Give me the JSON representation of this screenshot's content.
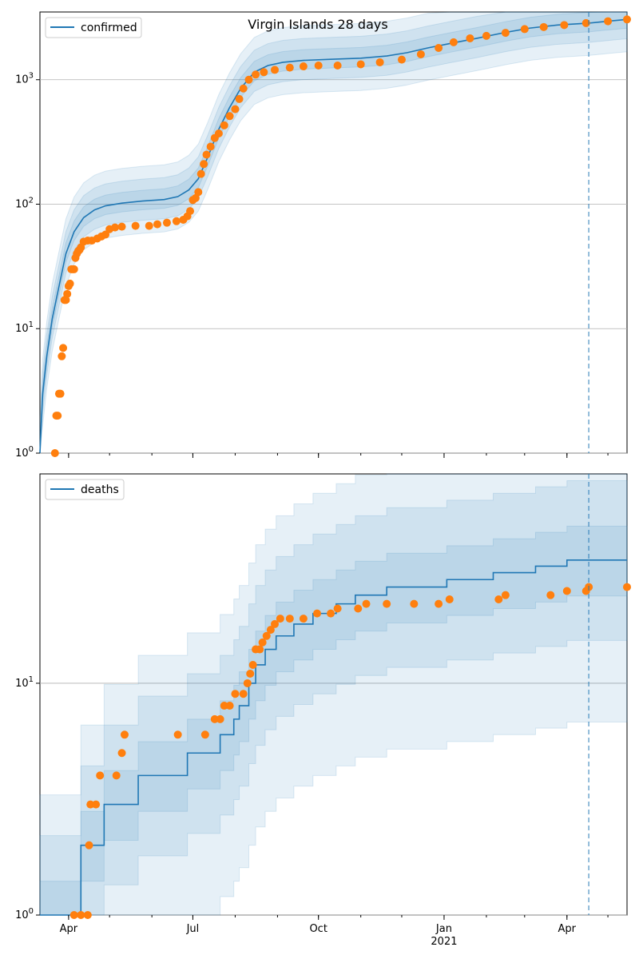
{
  "chart_data": [
    {
      "type": "line",
      "title": "Virgin Islands 28 days",
      "yscale": "log",
      "ylim": [
        1,
        3500
      ],
      "xlim": [
        "2020-03-11",
        "2021-05-15"
      ],
      "y_ticks": [
        {
          "value": 1,
          "base": "10",
          "exp": "0"
        },
        {
          "value": 10,
          "base": "10",
          "exp": "1"
        },
        {
          "value": 100,
          "base": "10",
          "exp": "2"
        },
        {
          "value": 1000,
          "base": "10",
          "exp": "3"
        }
      ],
      "grid": "y-major",
      "legend": {
        "position": "top-left",
        "label": "confirmed"
      },
      "vline_date": "2021-04-17",
      "colors": {
        "model": "#1f77b4",
        "observed": "#ff7f0e",
        "band": "#1f77b4"
      },
      "series": [
        {
          "name": "confirmed",
          "kind": "line",
          "points": [
            [
              "2020-03-11",
              1
            ],
            [
              "2020-03-13",
              3
            ],
            [
              "2020-03-16",
              6
            ],
            [
              "2020-03-20",
              12
            ],
            [
              "2020-03-25",
              22
            ],
            [
              "2020-03-30",
              40
            ],
            [
              "2020-04-05",
              60
            ],
            [
              "2020-04-12",
              78
            ],
            [
              "2020-04-20",
              90
            ],
            [
              "2020-04-28",
              97
            ],
            [
              "2020-05-10",
              102
            ],
            [
              "2020-05-25",
              106
            ],
            [
              "2020-06-10",
              109
            ],
            [
              "2020-06-20",
              115
            ],
            [
              "2020-06-28",
              130
            ],
            [
              "2020-07-05",
              160
            ],
            [
              "2020-07-12",
              240
            ],
            [
              "2020-07-20",
              400
            ],
            [
              "2020-07-28",
              600
            ],
            [
              "2020-08-05",
              850
            ],
            [
              "2020-08-15",
              1150
            ],
            [
              "2020-08-25",
              1300
            ],
            [
              "2020-09-05",
              1380
            ],
            [
              "2020-09-20",
              1430
            ],
            [
              "2020-10-10",
              1460
            ],
            [
              "2020-11-01",
              1490
            ],
            [
              "2020-11-20",
              1550
            ],
            [
              "2020-12-05",
              1650
            ],
            [
              "2020-12-20",
              1800
            ],
            [
              "2021-01-05",
              1950
            ],
            [
              "2021-01-25",
              2150
            ],
            [
              "2021-02-15",
              2400
            ],
            [
              "2021-03-05",
              2600
            ],
            [
              "2021-03-25",
              2750
            ],
            [
              "2021-04-17",
              2850
            ],
            [
              "2021-05-01",
              2950
            ],
            [
              "2021-05-15",
              3050
            ]
          ]
        },
        {
          "name": "confirmed_observed",
          "kind": "scatter",
          "points": [
            [
              "2020-03-22",
              1
            ],
            [
              "2020-03-23",
              2
            ],
            [
              "2020-03-24",
              2
            ],
            [
              "2020-03-25",
              3
            ],
            [
              "2020-03-26",
              3
            ],
            [
              "2020-03-27",
              6
            ],
            [
              "2020-03-28",
              7
            ],
            [
              "2020-03-29",
              17
            ],
            [
              "2020-03-30",
              17
            ],
            [
              "2020-03-31",
              19
            ],
            [
              "2020-04-01",
              22
            ],
            [
              "2020-04-02",
              23
            ],
            [
              "2020-04-03",
              30
            ],
            [
              "2020-04-04",
              30
            ],
            [
              "2020-04-05",
              30
            ],
            [
              "2020-04-06",
              37
            ],
            [
              "2020-04-07",
              40
            ],
            [
              "2020-04-08",
              42
            ],
            [
              "2020-04-09",
              43
            ],
            [
              "2020-04-10",
              45
            ],
            [
              "2020-04-12",
              50
            ],
            [
              "2020-04-15",
              51
            ],
            [
              "2020-04-18",
              51
            ],
            [
              "2020-04-22",
              53
            ],
            [
              "2020-04-25",
              55
            ],
            [
              "2020-04-28",
              57
            ],
            [
              "2020-05-01",
              63
            ],
            [
              "2020-05-05",
              65
            ],
            [
              "2020-05-10",
              66
            ],
            [
              "2020-05-20",
              67
            ],
            [
              "2020-05-30",
              67
            ],
            [
              "2020-06-05",
              69
            ],
            [
              "2020-06-12",
              71
            ],
            [
              "2020-06-19",
              73
            ],
            [
              "2020-06-24",
              75
            ],
            [
              "2020-06-27",
              80
            ],
            [
              "2020-06-29",
              88
            ],
            [
              "2020-07-01",
              108
            ],
            [
              "2020-07-03",
              112
            ],
            [
              "2020-07-05",
              125
            ],
            [
              "2020-07-07",
              175
            ],
            [
              "2020-07-09",
              210
            ],
            [
              "2020-07-11",
              250
            ],
            [
              "2020-07-14",
              290
            ],
            [
              "2020-07-17",
              340
            ],
            [
              "2020-07-20",
              370
            ],
            [
              "2020-07-24",
              430
            ],
            [
              "2020-07-28",
              510
            ],
            [
              "2020-08-01",
              580
            ],
            [
              "2020-08-04",
              700
            ],
            [
              "2020-08-07",
              850
            ],
            [
              "2020-08-11",
              1000
            ],
            [
              "2020-08-16",
              1100
            ],
            [
              "2020-08-22",
              1150
            ],
            [
              "2020-08-30",
              1200
            ],
            [
              "2020-09-10",
              1250
            ],
            [
              "2020-09-20",
              1280
            ],
            [
              "2020-10-01",
              1300
            ],
            [
              "2020-10-15",
              1300
            ],
            [
              "2020-11-01",
              1330
            ],
            [
              "2020-11-15",
              1380
            ],
            [
              "2020-12-01",
              1450
            ],
            [
              "2020-12-15",
              1600
            ],
            [
              "2020-12-28",
              1800
            ],
            [
              "2021-01-08",
              2000
            ],
            [
              "2021-01-20",
              2150
            ],
            [
              "2021-02-01",
              2250
            ],
            [
              "2021-02-15",
              2380
            ],
            [
              "2021-03-01",
              2550
            ],
            [
              "2021-03-15",
              2650
            ],
            [
              "2021-03-30",
              2750
            ],
            [
              "2021-04-15",
              2850
            ],
            [
              "2021-05-01",
              2950
            ],
            [
              "2021-05-15",
              3050
            ]
          ]
        }
      ],
      "bands": [
        {
          "level": "outer",
          "upper_factor": 1.9,
          "lower_factor": 0.55
        },
        {
          "level": "mid",
          "upper_factor": 1.5,
          "lower_factor": 0.7
        },
        {
          "level": "inner",
          "upper_factor": 1.22,
          "lower_factor": 0.85
        }
      ]
    },
    {
      "type": "line",
      "title": "",
      "yscale": "log",
      "ylim": [
        1,
        80
      ],
      "xlim": [
        "2020-03-11",
        "2021-05-15"
      ],
      "y_ticks": [
        {
          "value": 1,
          "base": "10",
          "exp": "0"
        },
        {
          "value": 10,
          "base": "10",
          "exp": "1"
        }
      ],
      "x_ticks": [
        {
          "date": "2020-04-01",
          "label": "Apr",
          "sub": ""
        },
        {
          "date": "2020-07-01",
          "label": "Jul",
          "sub": ""
        },
        {
          "date": "2020-10-01",
          "label": "Oct",
          "sub": ""
        },
        {
          "date": "2021-01-01",
          "label": "Jan",
          "sub": "2021"
        },
        {
          "date": "2021-04-01",
          "label": "Apr",
          "sub": ""
        }
      ],
      "grid": "y-major",
      "legend": {
        "position": "top-left",
        "label": "deaths"
      },
      "vline_date": "2021-04-17",
      "colors": {
        "model": "#1f77b4",
        "observed": "#ff7f0e",
        "band": "#1f77b4"
      },
      "series": [
        {
          "name": "deaths",
          "kind": "step",
          "points": [
            [
              "2020-03-11",
              1
            ],
            [
              "2020-04-10",
              2
            ],
            [
              "2020-04-27",
              3
            ],
            [
              "2020-05-22",
              4
            ],
            [
              "2020-06-27",
              5
            ],
            [
              "2020-07-21",
              6
            ],
            [
              "2020-07-31",
              7
            ],
            [
              "2020-08-04",
              8
            ],
            [
              "2020-08-11",
              10
            ],
            [
              "2020-08-16",
              12
            ],
            [
              "2020-08-23",
              14
            ],
            [
              "2020-08-31",
              16
            ],
            [
              "2020-09-13",
              18
            ],
            [
              "2020-09-27",
              20
            ],
            [
              "2020-10-14",
              22
            ],
            [
              "2020-10-28",
              24
            ],
            [
              "2020-11-20",
              26
            ],
            [
              "2021-01-03",
              28
            ],
            [
              "2021-02-06",
              30
            ],
            [
              "2021-03-09",
              32
            ],
            [
              "2021-04-01",
              34
            ],
            [
              "2021-05-15",
              34
            ]
          ]
        },
        {
          "name": "deaths_observed",
          "kind": "scatter",
          "points": [
            [
              "2020-04-05",
              1
            ],
            [
              "2020-04-10",
              1
            ],
            [
              "2020-04-15",
              1
            ],
            [
              "2020-04-16",
              2
            ],
            [
              "2020-04-17",
              3
            ],
            [
              "2020-04-21",
              3
            ],
            [
              "2020-04-24",
              4
            ],
            [
              "2020-05-06",
              4
            ],
            [
              "2020-05-10",
              5
            ],
            [
              "2020-05-12",
              6
            ],
            [
              "2020-06-20",
              6
            ],
            [
              "2020-07-10",
              6
            ],
            [
              "2020-07-17",
              7
            ],
            [
              "2020-07-21",
              7
            ],
            [
              "2020-07-24",
              8
            ],
            [
              "2020-07-28",
              8
            ],
            [
              "2020-08-01",
              9
            ],
            [
              "2020-08-07",
              9
            ],
            [
              "2020-08-10",
              10
            ],
            [
              "2020-08-12",
              11
            ],
            [
              "2020-08-14",
              12
            ],
            [
              "2020-08-16",
              14
            ],
            [
              "2020-08-19",
              14
            ],
            [
              "2020-08-21",
              15
            ],
            [
              "2020-08-24",
              16
            ],
            [
              "2020-08-27",
              17
            ],
            [
              "2020-08-30",
              18
            ],
            [
              "2020-09-03",
              19
            ],
            [
              "2020-09-10",
              19
            ],
            [
              "2020-09-20",
              19
            ],
            [
              "2020-09-30",
              20
            ],
            [
              "2020-10-10",
              20
            ],
            [
              "2020-10-15",
              21
            ],
            [
              "2020-10-30",
              21
            ],
            [
              "2020-11-05",
              22
            ],
            [
              "2020-11-20",
              22
            ],
            [
              "2020-12-10",
              22
            ],
            [
              "2020-12-28",
              22
            ],
            [
              "2021-01-05",
              23
            ],
            [
              "2021-02-10",
              23
            ],
            [
              "2021-02-15",
              24
            ],
            [
              "2021-03-20",
              24
            ],
            [
              "2021-04-01",
              25
            ],
            [
              "2021-04-15",
              25
            ],
            [
              "2021-04-17",
              26
            ],
            [
              "2021-05-15",
              26
            ]
          ]
        }
      ],
      "bands": [
        {
          "level": "outer",
          "upper_factor": 3.3,
          "lower_factor": 0.2
        },
        {
          "level": "mid",
          "upper_factor": 2.2,
          "lower_factor": 0.45
        },
        {
          "level": "inner",
          "upper_factor": 1.4,
          "lower_factor": 0.7
        }
      ]
    }
  ]
}
